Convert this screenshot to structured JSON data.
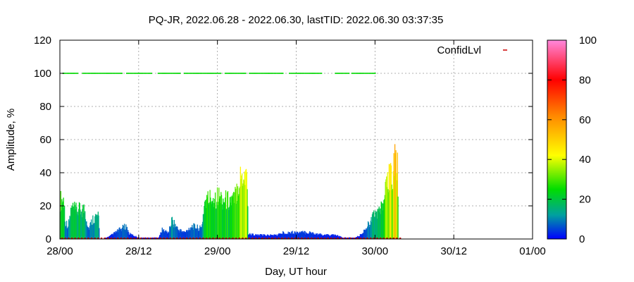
{
  "chart_data": {
    "type": "bar",
    "title": "PQ-JR, 2022.06.28 - 2022.06.30, lastTID: 2022.06.30 03:37:35",
    "xlabel": "Day, UT hour",
    "ylabel": "Amplitude, %",
    "xlim_hours": [
      0,
      72
    ],
    "ylim": [
      0,
      120
    ],
    "x_ticks": [
      {
        "hour": 0,
        "label": "28/00"
      },
      {
        "hour": 12,
        "label": "28/12"
      },
      {
        "hour": 24,
        "label": "29/00"
      },
      {
        "hour": 36,
        "label": "29/12"
      },
      {
        "hour": 48,
        "label": "30/00"
      },
      {
        "hour": 60,
        "label": "30/12"
      },
      {
        "hour": 72,
        "label": "01/00"
      }
    ],
    "y_ticks": [
      0,
      20,
      40,
      60,
      80,
      100,
      120
    ],
    "grid": true,
    "legend": {
      "position": "top-right",
      "entries": [
        "ConfidLvl"
      ]
    },
    "colorbar": {
      "min": 0,
      "max": 100,
      "ticks": [
        0,
        20,
        40,
        60,
        80,
        100
      ]
    },
    "amplitude_profile": [
      [
        0.0,
        30
      ],
      [
        0.6,
        30
      ],
      [
        0.7,
        14
      ],
      [
        1.2,
        10
      ],
      [
        1.7,
        24
      ],
      [
        2.3,
        22
      ],
      [
        3.7,
        23
      ],
      [
        4.3,
        8
      ],
      [
        5.0,
        16
      ],
      [
        5.8,
        18
      ],
      [
        6.0,
        0
      ],
      [
        7.0,
        1
      ],
      [
        7.5,
        2
      ],
      [
        9.0,
        7
      ],
      [
        10.0,
        10
      ],
      [
        10.5,
        4
      ],
      [
        12.0,
        1
      ],
      [
        15.0,
        1
      ],
      [
        15.5,
        7
      ],
      [
        16.5,
        5
      ],
      [
        17.0,
        15
      ],
      [
        18.0,
        7
      ],
      [
        19.0,
        5
      ],
      [
        20.0,
        10
      ],
      [
        21.5,
        8
      ],
      [
        22.0,
        29
      ],
      [
        23.0,
        32
      ],
      [
        24.0,
        33
      ],
      [
        25.0,
        30
      ],
      [
        26.0,
        30
      ],
      [
        26.5,
        30
      ],
      [
        27.0,
        42
      ],
      [
        27.8,
        51
      ],
      [
        28.5,
        50
      ],
      [
        28.6,
        4
      ],
      [
        30.0,
        3
      ],
      [
        31.5,
        3
      ],
      [
        33.0,
        3
      ],
      [
        34.0,
        5
      ],
      [
        36.0,
        5
      ],
      [
        37.0,
        5
      ],
      [
        38.0,
        5
      ],
      [
        40.0,
        3
      ],
      [
        42.0,
        3
      ],
      [
        43.0,
        1
      ],
      [
        45.0,
        1
      ],
      [
        46.0,
        4
      ],
      [
        47.0,
        12
      ],
      [
        48.0,
        20
      ],
      [
        49.0,
        24
      ],
      [
        50.0,
        45
      ],
      [
        51.0,
        60
      ],
      [
        51.4,
        58
      ],
      [
        51.5,
        0
      ]
    ],
    "confidence_points": {
      "value": 100,
      "segments_hours": [
        [
          0.5,
          2.8
        ],
        [
          3.5,
          9.5
        ],
        [
          10.2,
          14.0
        ],
        [
          15.0,
          18.5
        ],
        [
          19.0,
          24.5
        ],
        [
          25.2,
          28.3
        ],
        [
          28.9,
          34.0
        ],
        [
          35.0,
          40.0
        ],
        [
          42.0,
          44.0
        ],
        [
          44.5,
          48.2
        ]
      ]
    }
  }
}
